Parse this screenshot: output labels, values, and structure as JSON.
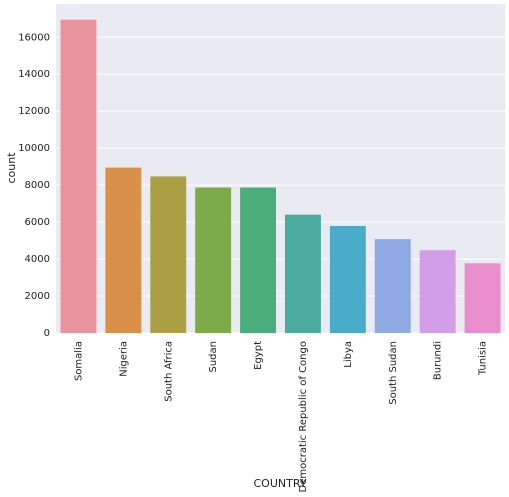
{
  "chart_data": {
    "type": "bar",
    "xlabel": "COUNTRY",
    "ylabel": "count",
    "categories": [
      "Somalia",
      "Nigeria",
      "South Africa",
      "Sudan",
      "Egypt",
      "Democratic Republic of Congo",
      "Libya",
      "South Sudan",
      "Burundi",
      "Tunisia"
    ],
    "values": [
      16950,
      8950,
      8470,
      7870,
      7870,
      6400,
      5790,
      5080,
      4480,
      3770
    ],
    "colors": [
      "#e8939e",
      "#d99149",
      "#aca045",
      "#7dab4a",
      "#4cad7c",
      "#4bab9e",
      "#4aacc8",
      "#8fa9e5",
      "#d29ee8",
      "#e98dcc"
    ],
    "ylim": [
      0,
      17800
    ],
    "yticks": [
      0,
      2000,
      4000,
      6000,
      8000,
      10000,
      12000,
      14000,
      16000
    ],
    "grid": true
  }
}
